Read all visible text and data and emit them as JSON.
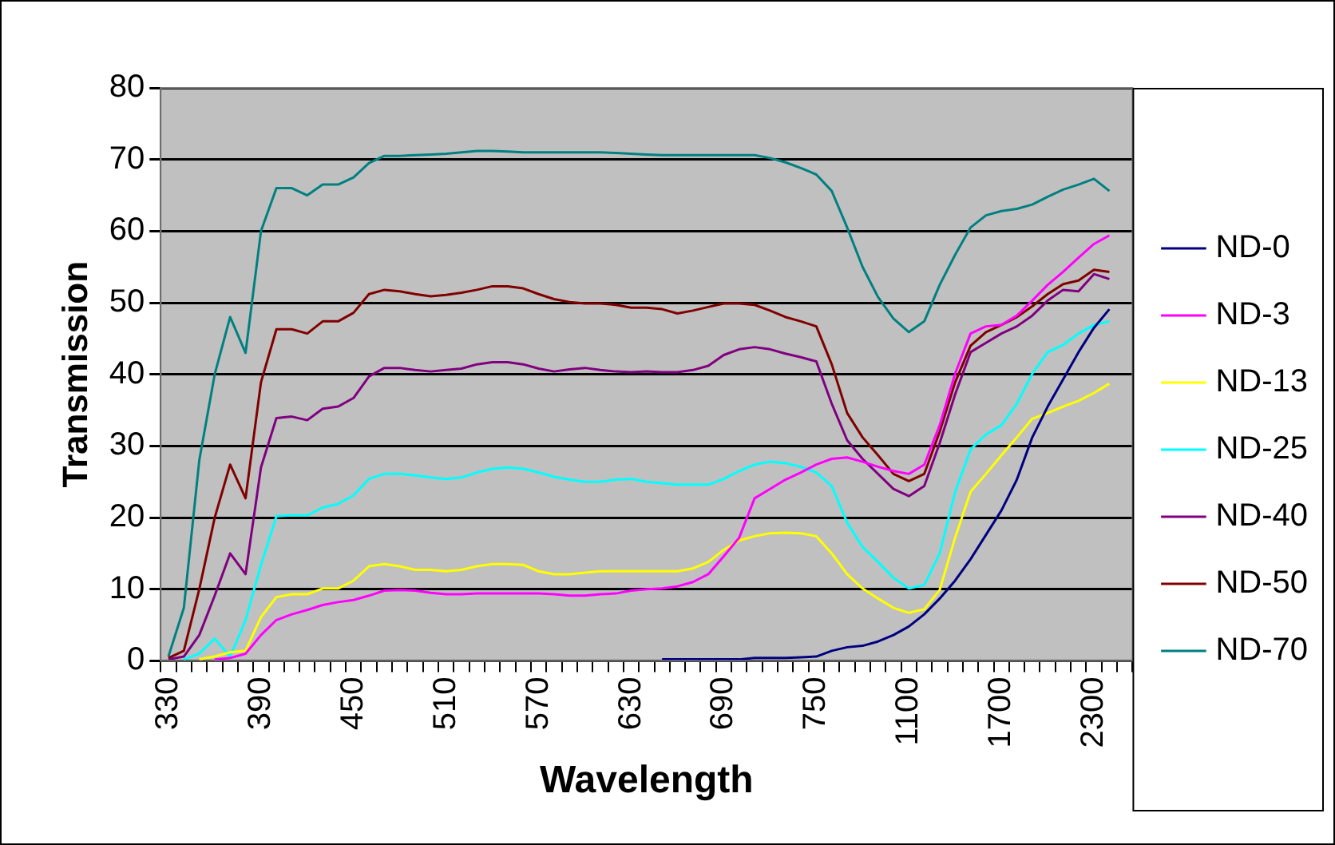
{
  "chart_data": {
    "type": "line",
    "xlabel": "Wavelength",
    "ylabel": "Transmission",
    "categories": [
      "330",
      null,
      null,
      null,
      null,
      null,
      "390",
      null,
      null,
      null,
      null,
      null,
      "450",
      null,
      null,
      null,
      null,
      null,
      "510",
      null,
      null,
      null,
      null,
      null,
      "570",
      null,
      null,
      null,
      null,
      null,
      "630",
      null,
      null,
      null,
      null,
      null,
      "690",
      null,
      null,
      null,
      null,
      null,
      "750",
      null,
      null,
      null,
      null,
      null,
      "1100",
      null,
      null,
      null,
      null,
      null,
      "1700",
      null,
      null,
      null,
      null,
      null,
      "2300",
      null,
      null
    ],
    "ylim": [
      0,
      80
    ],
    "yticks": [
      0,
      10,
      20,
      30,
      40,
      50,
      60,
      70,
      80
    ],
    "grid": "y",
    "legend": "right",
    "marker": "none",
    "line_style": "solid",
    "series": [
      {
        "name": "ND-0",
        "color": "#000080",
        "values": [
          null,
          null,
          null,
          null,
          null,
          null,
          null,
          null,
          null,
          null,
          null,
          null,
          null,
          null,
          null,
          null,
          null,
          null,
          null,
          null,
          null,
          null,
          null,
          null,
          null,
          null,
          null,
          null,
          null,
          null,
          null,
          null,
          0.2,
          0.2,
          0.2,
          0.2,
          0.2,
          0.2,
          0.4,
          0.4,
          0.4,
          0.5,
          0.6,
          1.4,
          1.9,
          2.1,
          2.7,
          3.6,
          4.8,
          6.5,
          8.7,
          11.2,
          14.2,
          17.6,
          21,
          25.3,
          31.2,
          35.5,
          39.3,
          43.1,
          46.5,
          49.1,
          null
        ]
      },
      {
        "name": "ND-3",
        "color": "#ff00ff",
        "values": [
          null,
          null,
          null,
          0.2,
          0.4,
          1,
          3.6,
          5.7,
          6.5,
          7.1,
          7.8,
          8.2,
          8.5,
          9.1,
          9.8,
          9.9,
          9.8,
          9.5,
          9.3,
          9.3,
          9.4,
          9.4,
          9.4,
          9.4,
          9.4,
          9.3,
          9.1,
          9.1,
          9.3,
          9.4,
          9.8,
          10,
          10.1,
          10.4,
          11,
          12.1,
          14.6,
          17.2,
          22.7,
          24,
          25.3,
          26.3,
          27.4,
          28.2,
          28.4,
          27.8,
          27.1,
          26.5,
          26.1,
          27.4,
          32.9,
          40.1,
          45.7,
          46.7,
          46.9,
          48.2,
          50.3,
          52.5,
          54.3,
          56.3,
          58.2,
          59.4,
          null
        ]
      },
      {
        "name": "ND-13",
        "color": "#ffff00",
        "values": [
          null,
          null,
          0.2,
          0.6,
          1.2,
          1.4,
          6.1,
          8.9,
          9.3,
          9.3,
          10.1,
          10.1,
          11.2,
          13.2,
          13.5,
          13.2,
          12.7,
          12.7,
          12.5,
          12.7,
          13.2,
          13.5,
          13.5,
          13.4,
          12.5,
          12.1,
          12.1,
          12.3,
          12.5,
          12.5,
          12.5,
          12.5,
          12.5,
          12.5,
          12.9,
          13.8,
          15.5,
          16.8,
          17.4,
          17.8,
          17.9,
          17.8,
          17.4,
          15,
          12.1,
          10.1,
          8.7,
          7.4,
          6.7,
          7.2,
          9.9,
          17.2,
          23.6,
          26.1,
          28.7,
          31.2,
          33.8,
          34.6,
          35.5,
          36.3,
          37.4,
          38.7,
          null
        ]
      },
      {
        "name": "ND-25",
        "color": "#00ffff",
        "values": [
          null,
          0.2,
          1,
          3.1,
          0.6,
          5.7,
          13.4,
          20.2,
          20.3,
          20.3,
          21.4,
          21.9,
          23.1,
          25.4,
          26.1,
          26.1,
          25.9,
          25.6,
          25.4,
          25.6,
          26.3,
          26.8,
          27,
          26.8,
          26.3,
          25.7,
          25.3,
          25,
          25,
          25.3,
          25.4,
          25,
          24.8,
          24.6,
          24.6,
          24.6,
          25.4,
          26.5,
          27.4,
          27.8,
          27.6,
          27.1,
          26.3,
          24.4,
          19.3,
          15.9,
          13.8,
          11.6,
          10.1,
          10.6,
          15,
          23.6,
          29.5,
          31.6,
          32.9,
          35.9,
          40.1,
          43.1,
          44.1,
          45.7,
          46.9,
          47.4,
          null
        ]
      },
      {
        "name": "ND-40",
        "color": "#800080",
        "values": [
          0.2,
          0.6,
          3.6,
          9.1,
          15,
          12.1,
          27,
          33.9,
          34.1,
          33.6,
          35.2,
          35.5,
          36.7,
          39.7,
          40.9,
          40.9,
          40.6,
          40.4,
          40.6,
          40.8,
          41.4,
          41.7,
          41.7,
          41.4,
          40.8,
          40.4,
          40.7,
          40.9,
          40.6,
          40.4,
          40.3,
          40.4,
          40.3,
          40.3,
          40.6,
          41.2,
          42.7,
          43.5,
          43.8,
          43.5,
          42.9,
          42.4,
          41.8,
          35.9,
          30.8,
          28.2,
          26.1,
          24,
          23,
          24.4,
          30.4,
          37.2,
          43.1,
          44.4,
          45.7,
          46.7,
          48.2,
          50.3,
          51.8,
          51.6,
          54,
          53.3,
          null
        ]
      },
      {
        "name": "ND-50",
        "color": "#800000",
        "values": [
          0.4,
          1.4,
          10,
          20,
          27.4,
          22.7,
          38.9,
          46.3,
          46.3,
          45.7,
          47.4,
          47.4,
          48.6,
          51.2,
          51.8,
          51.6,
          51.2,
          50.9,
          51.1,
          51.4,
          51.8,
          52.3,
          52.3,
          52,
          51.2,
          50.5,
          50.1,
          49.9,
          49.9,
          49.7,
          49.3,
          49.3,
          49.1,
          48.5,
          48.9,
          49.4,
          49.9,
          49.9,
          49.7,
          48.9,
          48,
          47.4,
          46.7,
          41.4,
          34.6,
          31.2,
          28.7,
          26.1,
          25.1,
          26.1,
          32,
          38.9,
          44,
          45.9,
          46.9,
          48,
          49.5,
          51.2,
          52.6,
          53.1,
          54.6,
          54.3,
          null
        ]
      },
      {
        "name": "ND-70",
        "color": "#008080",
        "values": [
          0.6,
          7.4,
          28,
          40,
          48,
          43,
          60,
          66,
          66,
          65,
          66.5,
          66.5,
          67.5,
          69.5,
          70.5,
          70.5,
          70.6,
          70.7,
          70.8,
          71,
          71.2,
          71.2,
          71.1,
          71,
          71,
          71,
          71,
          71,
          71,
          70.9,
          70.8,
          70.7,
          70.6,
          70.6,
          70.6,
          70.6,
          70.6,
          70.6,
          70.6,
          70.2,
          69.6,
          68.8,
          67.9,
          65.6,
          60.5,
          55,
          50.8,
          47.8,
          45.9,
          47.4,
          52.5,
          56.7,
          60.5,
          62.2,
          62.8,
          63.1,
          63.7,
          64.8,
          65.8,
          66.5,
          67.3,
          65.6,
          null
        ]
      }
    ]
  }
}
